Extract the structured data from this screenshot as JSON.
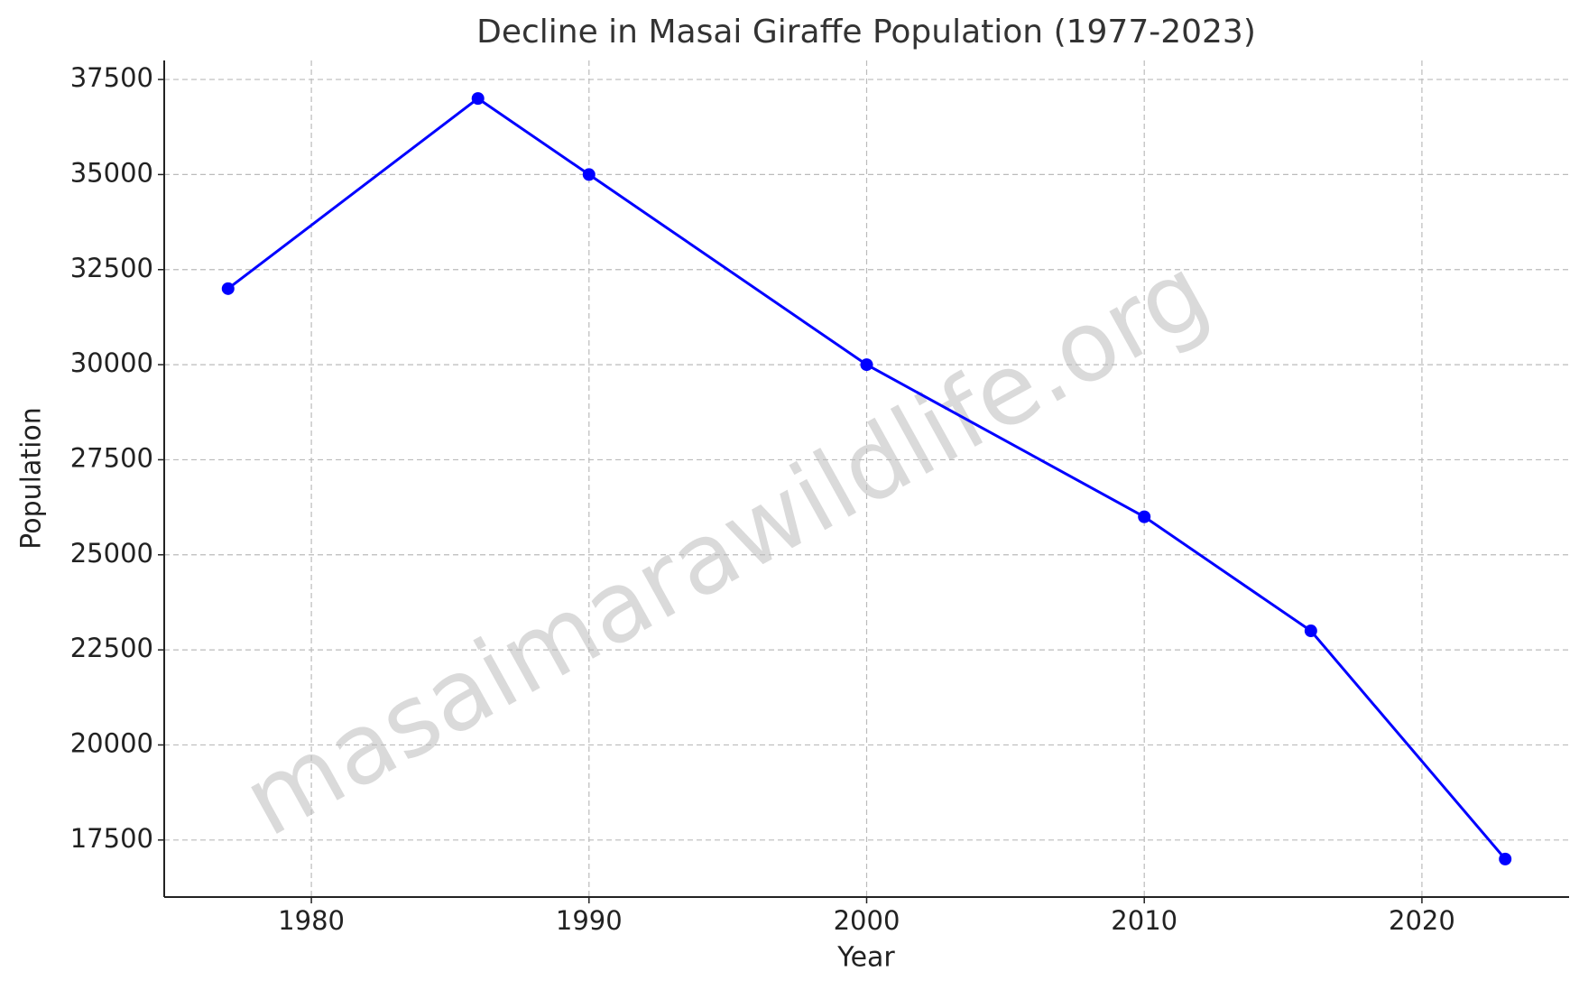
{
  "chart_data": {
    "type": "line",
    "title": "Decline in Masai Giraffe Population (1977-2023)",
    "x_label": "Year",
    "y_label": "Population",
    "watermark": "masaimarawildlife.org",
    "x": [
      1977,
      1986,
      1990,
      2000,
      2010,
      2016,
      2023
    ],
    "series": [
      {
        "color": "#0000ff",
        "values": [
          32000,
          37000,
          35000,
          30000,
          26000,
          23000,
          17000
        ]
      }
    ],
    "xlim": [
      1974.7,
      2025.3
    ],
    "xticks": [
      1980,
      1990,
      2000,
      2010,
      2020
    ],
    "ylim": [
      16000,
      38000
    ],
    "yticks": [
      17500,
      20000,
      22500,
      25000,
      27500,
      30000,
      32500,
      35000,
      37500
    ],
    "grid": true
  }
}
